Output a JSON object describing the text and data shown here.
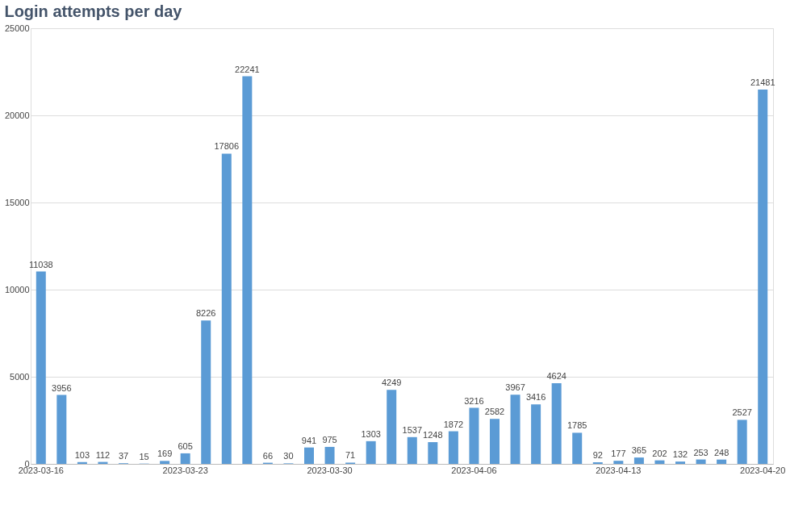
{
  "chart_data": {
    "type": "bar",
    "title": "Login attempts per day",
    "categories": [
      "2023-03-16",
      null,
      null,
      null,
      null,
      null,
      null,
      "2023-03-23",
      null,
      null,
      null,
      null,
      null,
      null,
      "2023-03-30",
      null,
      null,
      null,
      null,
      null,
      null,
      "2023-04-06",
      null,
      null,
      null,
      null,
      null,
      null,
      "2023-04-13",
      null,
      null,
      null,
      null,
      null,
      null,
      "2023-04-20"
    ],
    "values": [
      11038,
      3956,
      103,
      112,
      37,
      15,
      169,
      605,
      8226,
      17806,
      22241,
      66,
      30,
      941,
      975,
      71,
      1303,
      4249,
      1537,
      1248,
      1872,
      3216,
      2582,
      3967,
      3416,
      4624,
      1785,
      92,
      177,
      365,
      202,
      132,
      253,
      248,
      2527,
      21481
    ],
    "color": "#5b9bd5",
    "ylim": [
      0,
      25000
    ],
    "yticks": [
      0,
      5000,
      10000,
      15000,
      20000,
      25000
    ],
    "grid": "y",
    "data_labels": true
  }
}
